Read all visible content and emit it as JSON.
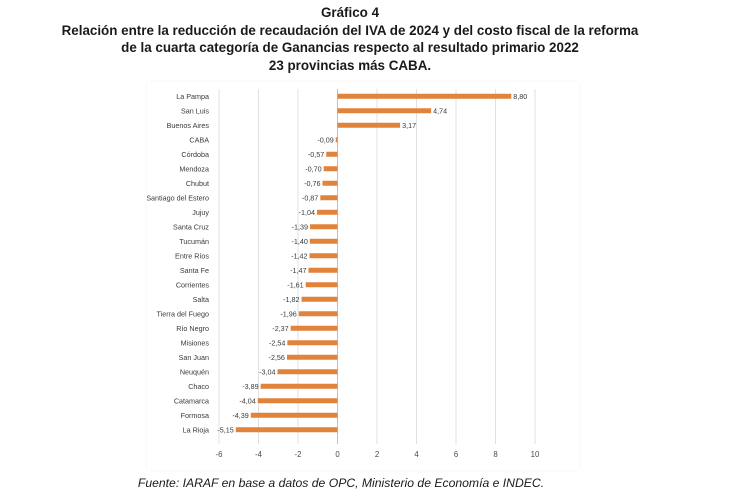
{
  "header": {
    "figure_label": "Gráfico 4",
    "title_line1": "Relación entre  la reducción de recaudación del IVA de 2024 y del costo fiscal de la reforma",
    "title_line2": "de la cuarta categoría de Ganancias respecto al resultado primario 2022",
    "title_line3": "23 provincias más CABA."
  },
  "footer": {
    "source": "Fuente: IARAF en base a datos de OPC, Ministerio de Economía e INDEC."
  },
  "colors": {
    "bar": "#E2833C",
    "grid": "#d9d9d9",
    "axis": "#bfbfbf"
  },
  "chart_data": {
    "type": "bar",
    "orientation": "horizontal",
    "title": "Relación entre la reducción de recaudación del IVA de 2024 y del costo fiscal de la reforma de la cuarta categoría de Ganancias respecto al resultado primario 2022",
    "categories": [
      "La Pampa",
      "San Luis",
      "Buenos Aires",
      "CABA",
      "Córdoba",
      "Mendoza",
      "Chubut",
      "Santiago del Estero",
      "Jujuy",
      "Santa Cruz",
      "Tucumán",
      "Entre Ríos",
      "Santa Fe",
      "Corrientes",
      "Salta",
      "Tierra del Fuego",
      "Río Negro",
      "Misiones",
      "San Juan",
      "Neuquén",
      "Chaco",
      "Catamarca",
      "Formosa",
      "La Rioja"
    ],
    "values": [
      8.8,
      4.74,
      3.17,
      -0.09,
      -0.57,
      -0.7,
      -0.76,
      -0.87,
      -1.04,
      -1.39,
      -1.4,
      -1.42,
      -1.47,
      -1.61,
      -1.82,
      -1.96,
      -2.37,
      -2.54,
      -2.56,
      -3.04,
      -3.89,
      -4.04,
      -4.39,
      -5.15
    ],
    "value_labels": [
      "8,80",
      "4,74",
      "3,17",
      "-0,09",
      "-0,57",
      "-0,70",
      "-0,76",
      "-0,87",
      "-1,04",
      "-1,39",
      "-1,40",
      "-1,42",
      "-1,47",
      "-1,61",
      "-1,82",
      "-1,96",
      "-2,37",
      "-2,54",
      "-2,56",
      "-3,04",
      "-3,89",
      "-4,04",
      "-4,39",
      "-5,15"
    ],
    "xlim": [
      -6,
      10
    ],
    "xticks": [
      -6,
      -4,
      -2,
      0,
      2,
      4,
      6,
      8,
      10
    ],
    "xtick_labels": [
      "-6",
      "-4",
      "-2",
      "0",
      "2",
      "4",
      "6",
      "8",
      "10"
    ],
    "grid": true,
    "xlabel": "",
    "ylabel": ""
  }
}
